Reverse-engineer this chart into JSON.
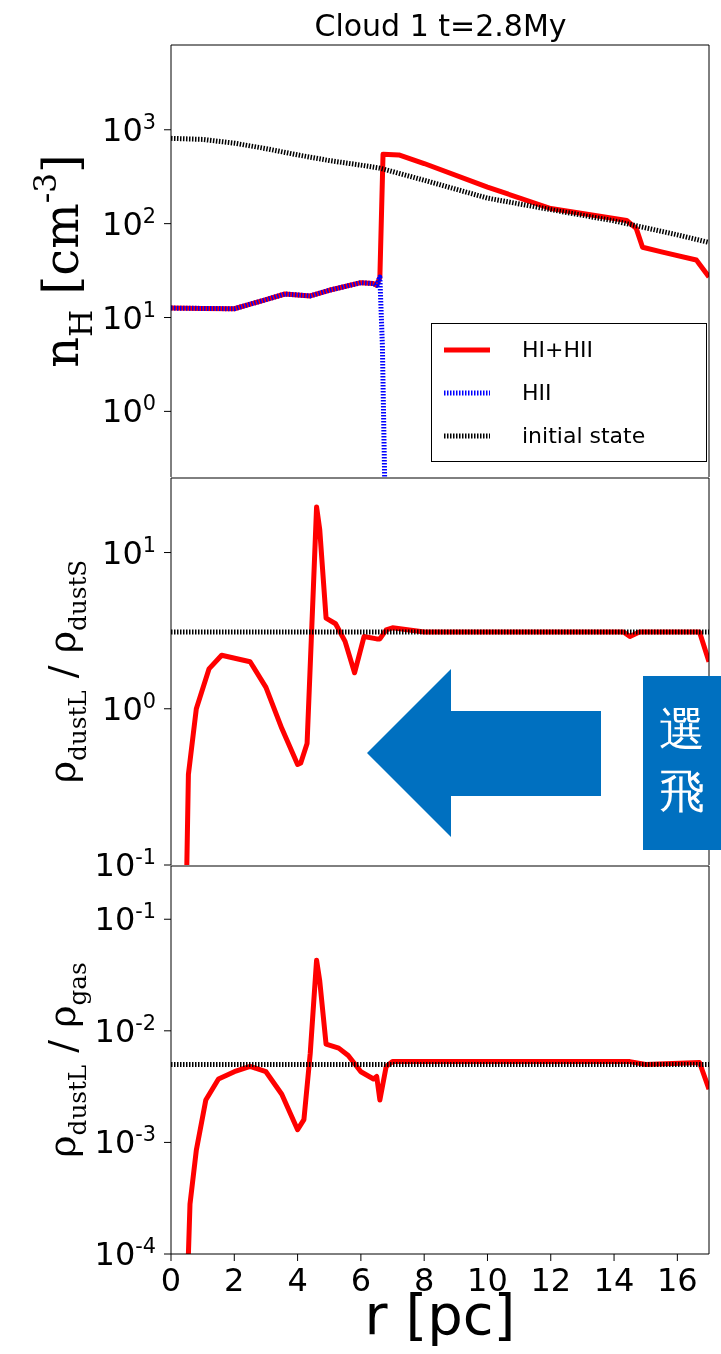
{
  "chart_data": [
    {
      "type": "line",
      "title": "Cloud 1 t=2.8My",
      "ylabel": "n$_{H}$ [cm$^{-3}$]",
      "log": true,
      "legend": "bottom right",
      "tick_labels": "y",
      "xlim": [
        0,
        17
      ],
      "xticks": [
        0,
        2,
        4,
        6,
        8,
        10,
        12,
        14,
        16
      ],
      "ylim": [
        0.2,
        8000
      ],
      "yticks": [
        {
          "value": 1,
          "label": "10$^{0}$"
        },
        {
          "value": 10,
          "label": "10$^{1}$"
        },
        {
          "value": 100,
          "label": "10$^{2}$"
        },
        {
          "value": 1000,
          "label": "10$^{3}$"
        }
      ],
      "series": [
        {
          "name": "HI+HII",
          "color": "#ff0000",
          "line_style": "solid",
          "x": [
            0,
            1,
            2,
            3,
            3.6,
            4.4,
            5,
            6,
            6.4,
            6.5,
            6.6,
            6.7,
            7.2,
            8,
            10,
            12,
            14.4,
            14.7,
            14.9,
            15.5,
            16.6,
            17
          ],
          "values": [
            12.6,
            12.5,
            12.4,
            15.5,
            17.8,
            17,
            19.5,
            23.5,
            23,
            22,
            27,
            550,
            540,
            437,
            245,
            145,
            108,
            89,
            56,
            50,
            41,
            27
          ]
        },
        {
          "name": "HII",
          "color": "#0000ff",
          "line_style": "dotted",
          "x": [
            0,
            1,
            2,
            3,
            3.6,
            4.4,
            5,
            6,
            6.4,
            6.5,
            6.6,
            6.68,
            6.75
          ],
          "values": [
            12.6,
            12.5,
            12.4,
            15.5,
            17.8,
            17,
            19.5,
            23.5,
            23,
            22,
            27,
            5,
            0.2
          ]
        },
        {
          "name": "initial state",
          "color": "#000000",
          "line_style": "dotted",
          "x": [
            0,
            1,
            2,
            3,
            4,
            5,
            6,
            6.6,
            8,
            10,
            12,
            14,
            16,
            17
          ],
          "values": [
            810,
            790,
            720,
            630,
            540,
            470,
            420,
            390,
            290,
            187,
            141,
            107,
            76,
            63
          ]
        }
      ]
    },
    {
      "type": "line",
      "ylabel": "ρ$_{dustL}$ / ρ$_{dustS}$",
      "log": true,
      "tick_labels": "y",
      "xlim": [
        0,
        17
      ],
      "xticks": [
        0,
        2,
        4,
        6,
        8,
        10,
        12,
        14,
        16
      ],
      "ylim": [
        0.1,
        30
      ],
      "yticks": [
        {
          "value": 0.1,
          "label": "10$^{-1}$"
        },
        {
          "value": 1,
          "label": "10$^{0}$"
        },
        {
          "value": 10,
          "label": "10$^{1}$"
        }
      ],
      "annotations": [
        "選",
        "飛"
      ],
      "series": [
        {
          "color": "#ff0000",
          "line_style": "solid",
          "x": [
            0.5,
            0.55,
            0.8,
            1.2,
            1.6,
            2.5,
            3,
            3.5,
            4,
            4.1,
            4.3,
            4.5,
            4.6,
            4.7,
            4.9,
            5.2,
            5.5,
            5.8,
            6.1,
            6.5,
            6.6,
            6.8,
            7,
            8,
            14.3,
            14.5,
            14.8,
            16.7,
            17
          ],
          "values": [
            0.1,
            0.38,
            1.0,
            1.8,
            2.2,
            2.0,
            1.37,
            0.75,
            0.44,
            0.45,
            0.6,
            6,
            19.6,
            14,
            3.8,
            3.5,
            2.7,
            1.7,
            2.9,
            2.8,
            2.8,
            3.2,
            3.3,
            3.1,
            3.1,
            2.9,
            3.1,
            3.1,
            2.0
          ]
        },
        {
          "color": "#000000",
          "line_style": "dotted",
          "x": [
            0,
            17
          ],
          "values": [
            3.1,
            3.1
          ]
        }
      ]
    },
    {
      "type": "line",
      "ylabel": "ρ$_{dustL}$ / ρ$_{gas}$",
      "xlabel": "r [pc]",
      "log": true,
      "xlim": [
        0,
        17
      ],
      "xticks": [
        0,
        2,
        4,
        6,
        8,
        10,
        12,
        14,
        16
      ],
      "ylim": [
        0.0001,
        0.3
      ],
      "yticks": [
        {
          "value": 0.0001,
          "label": "10$^{-4}$"
        },
        {
          "value": 0.001,
          "label": "10$^{-3}$"
        },
        {
          "value": 0.01,
          "label": "10$^{-2}$"
        },
        {
          "value": 0.1,
          "label": "10$^{-1}$"
        }
      ],
      "series": [
        {
          "color": "#ff0000",
          "line_style": "solid",
          "x": [
            0.55,
            0.6,
            0.8,
            1.1,
            1.5,
            2,
            2.5,
            3,
            3.5,
            4,
            4.2,
            4.4,
            4.6,
            4.7,
            4.9,
            5.3,
            5.6,
            6,
            6.4,
            6.5,
            6.6,
            6.8,
            7,
            14.5,
            15,
            16.7,
            17
          ],
          "values": [
            0.0001,
            0.00028,
            0.00085,
            0.0024,
            0.0037,
            0.0043,
            0.0048,
            0.0043,
            0.0027,
            0.0013,
            0.0016,
            0.0063,
            0.043,
            0.028,
            0.0076,
            0.007,
            0.006,
            0.0043,
            0.0037,
            0.0039,
            0.0024,
            0.0048,
            0.0053,
            0.0053,
            0.005,
            0.0052,
            0.003
          ]
        },
        {
          "color": "#000000",
          "line_style": "dotted",
          "x": [
            0,
            17
          ],
          "values": [
            0.005,
            0.005
          ]
        }
      ]
    }
  ]
}
